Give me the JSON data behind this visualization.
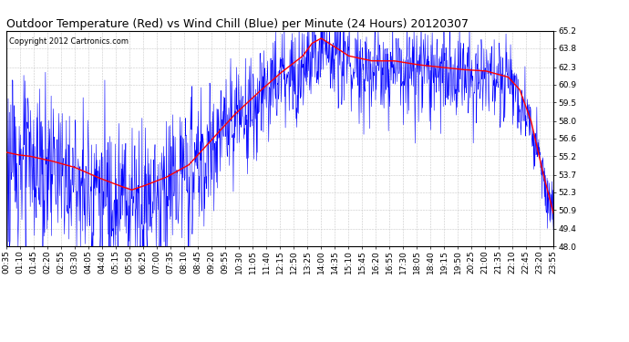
{
  "title": "Outdoor Temperature (Red) vs Wind Chill (Blue) per Minute (24 Hours) 20120307",
  "copyright": "Copyright 2012 Cartronics.com",
  "ylim": [
    48.0,
    65.2
  ],
  "yticks": [
    48.0,
    49.4,
    50.9,
    52.3,
    53.7,
    55.2,
    56.6,
    58.0,
    59.5,
    60.9,
    62.3,
    63.8,
    65.2
  ],
  "xtick_labels": [
    "00:35",
    "01:10",
    "01:45",
    "02:20",
    "02:55",
    "03:30",
    "04:05",
    "04:40",
    "05:15",
    "05:50",
    "06:25",
    "07:00",
    "07:35",
    "08:10",
    "08:45",
    "09:20",
    "09:55",
    "10:30",
    "11:05",
    "11:40",
    "12:15",
    "12:50",
    "13:25",
    "14:00",
    "14:35",
    "15:10",
    "15:45",
    "16:20",
    "16:55",
    "17:30",
    "18:05",
    "18:40",
    "19:15",
    "19:50",
    "20:25",
    "21:00",
    "21:35",
    "22:10",
    "22:45",
    "23:20",
    "23:55"
  ],
  "bg_color": "#ffffff",
  "grid_color": "#c8c8c8",
  "red_color": "#ff0000",
  "blue_color": "#0000ff",
  "title_fontsize": 9,
  "copyright_fontsize": 6,
  "tick_fontsize": 6.5,
  "total_minutes": 1440,
  "red_keypoints_hours": [
    0,
    0.5,
    1,
    2,
    3,
    4,
    5,
    5.5,
    6,
    7,
    8,
    9,
    10,
    11,
    12,
    13,
    13.4,
    13.8,
    14.5,
    15,
    16,
    17,
    18,
    19,
    20,
    21,
    22,
    22.5,
    23,
    23.5,
    24
  ],
  "red_keypoints_vals": [
    55.5,
    55.3,
    55.2,
    54.8,
    54.3,
    53.5,
    52.8,
    52.5,
    52.8,
    53.5,
    54.5,
    56.5,
    58.5,
    60.2,
    61.8,
    63.2,
    64.2,
    64.6,
    63.8,
    63.2,
    62.8,
    62.8,
    62.5,
    62.3,
    62.1,
    62.0,
    61.5,
    60.5,
    58.0,
    54.0,
    50.5
  ]
}
